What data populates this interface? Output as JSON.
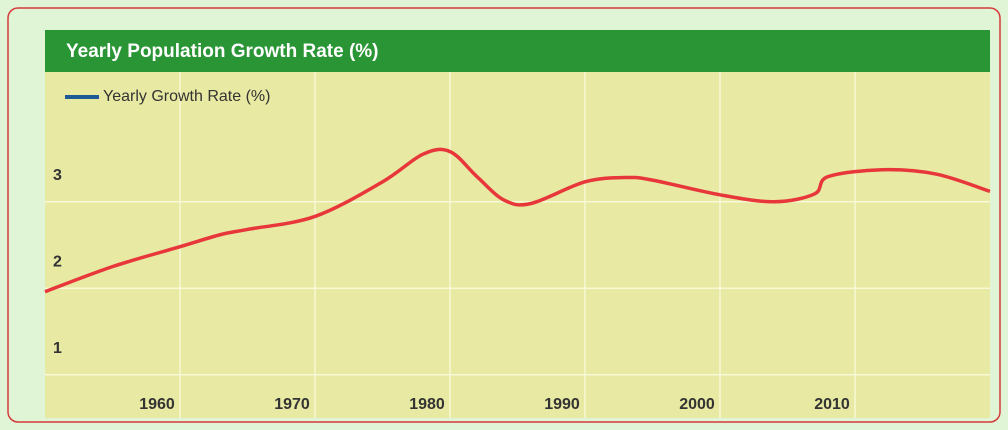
{
  "chart_data": {
    "type": "line",
    "title": "Yearly Population Growth Rate (%)",
    "x": [
      1950,
      1955,
      1960,
      1963,
      1965,
      1970,
      1975,
      1978,
      1980,
      1982,
      1984,
      1986,
      1990,
      1993,
      1995,
      2000,
      2004,
      2007,
      2008,
      2012,
      2016,
      2020
    ],
    "series": [
      {
        "name": "Yearly Growth Rate (%)",
        "color": "#e8373a",
        "legend_color": "#1f5a96",
        "values": [
          1.96,
          2.25,
          2.48,
          2.62,
          2.68,
          2.83,
          3.23,
          3.55,
          3.58,
          3.29,
          3.02,
          2.98,
          3.23,
          3.28,
          3.25,
          3.08,
          3.0,
          3.09,
          3.29,
          3.37,
          3.32,
          3.12
        ]
      }
    ],
    "xlim": [
      1950,
      2020
    ],
    "xticks": [
      1960,
      1970,
      1980,
      1990,
      2000,
      2010
    ],
    "ylim": [
      0.5,
      4.5
    ],
    "yticks": [
      1,
      2,
      3
    ],
    "grid": true
  }
}
